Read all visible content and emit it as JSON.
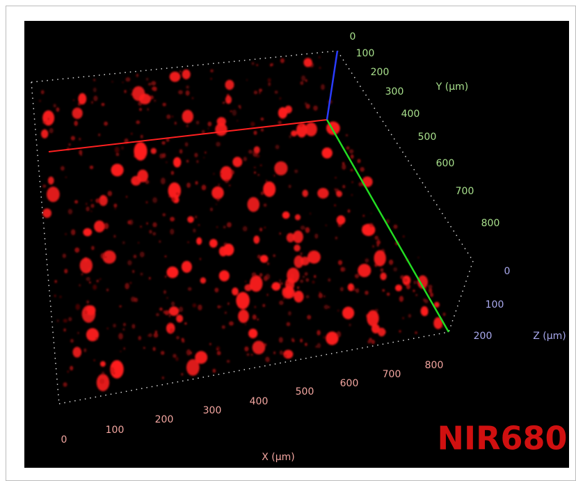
{
  "axes": {
    "x": {
      "label": "X (µm)",
      "ticks": [
        0,
        100,
        200,
        300,
        400,
        500,
        600,
        700,
        800
      ]
    },
    "y": {
      "label": "Y (µm)",
      "ticks": [
        0,
        100,
        200,
        300,
        400,
        500,
        600,
        700,
        800
      ]
    },
    "z": {
      "label": "Z (µm)",
      "ticks": [
        0,
        100,
        200
      ]
    }
  },
  "channel_label": "NIR680"
}
